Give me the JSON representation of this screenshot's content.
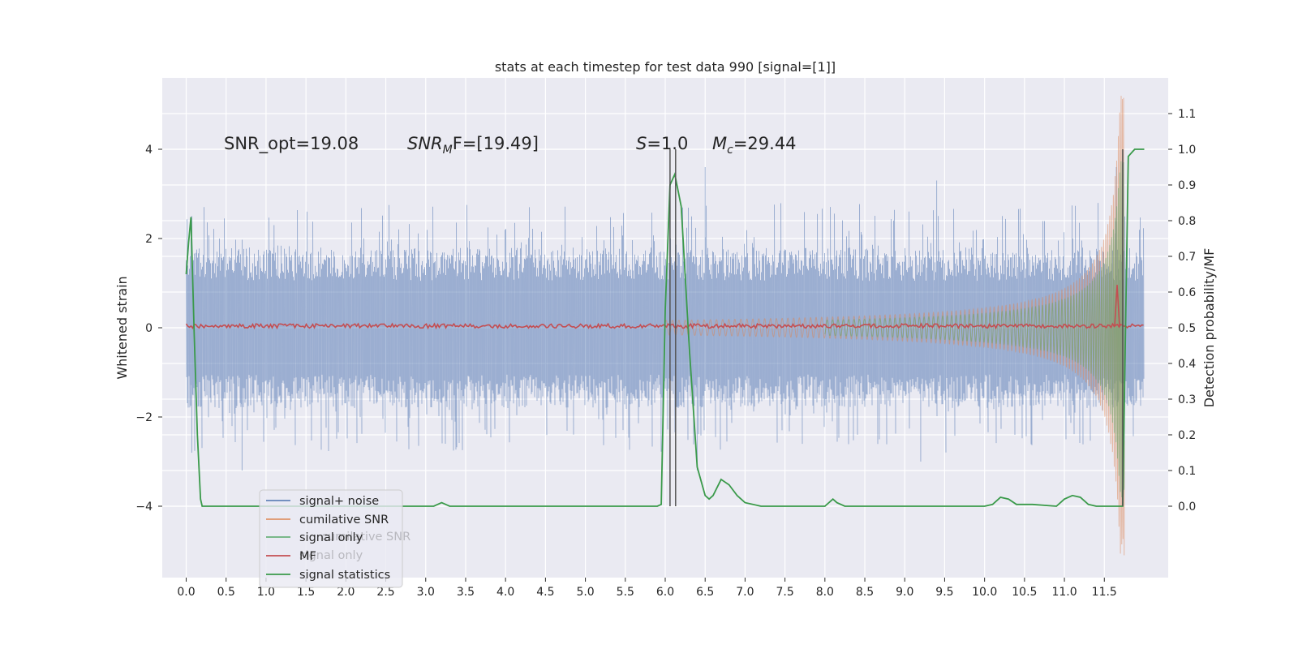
{
  "colors": {
    "background": "#ffffff",
    "plot_bg": "#eaeaf2",
    "grid": "#ffffff",
    "signal_noise": "#4c72b0",
    "cumulative_snr": "#dd8452",
    "signal_only": "#55a868",
    "mf": "#c44e52",
    "signal_statistics": "#3a9a4a",
    "vline": "#555555"
  },
  "chart_data": {
    "type": "line",
    "title": "stats at each timestep for test data 990 [signal=[1]]",
    "xlabel": "",
    "ylabel": "Whitened strain",
    "ylabel_right": "Detection probability/MF",
    "xlim": [
      -0.3,
      12.3
    ],
    "ylim": [
      -5.6,
      5.6
    ],
    "ylim_right": [
      -0.2,
      1.2
    ],
    "x_ticks": [
      0,
      0.5,
      1,
      1.5,
      2,
      2.5,
      3,
      3.5,
      4,
      4.5,
      5,
      5.5,
      6,
      6.5,
      7,
      7.5,
      8,
      8.5,
      9,
      9.5,
      10,
      10.5,
      11,
      11.5
    ],
    "x_tick_labels": [
      "0.0",
      "0.5",
      "1.0",
      "1.5",
      "2.0",
      "2.5",
      "3.0",
      "3.5",
      "4.0",
      "4.5",
      "5.0",
      "5.5",
      "6.0",
      "6.5",
      "7.0",
      "7.5",
      "8.0",
      "8.5",
      "9.0",
      "9.5",
      "10.0",
      "10.5",
      "11.0",
      "11.5"
    ],
    "y_ticks": [
      -4,
      -2,
      0,
      2,
      4
    ],
    "y_tick_labels": [
      "−4",
      "−2",
      "0",
      "2",
      "4"
    ],
    "y_right_ticks": [
      0,
      0.1,
      0.2,
      0.3,
      0.4,
      0.5,
      0.6,
      0.7,
      0.8,
      0.9,
      1.0,
      1.1
    ],
    "y_right_tick_labels": [
      "0.0",
      "0.1",
      "0.2",
      "0.3",
      "0.4",
      "0.5",
      "0.6",
      "0.7",
      "0.8",
      "0.9",
      "1.0",
      "1.1"
    ],
    "grid": true,
    "legend_position": "lower-left",
    "annotations": {
      "snr_opt": "SNR_opt=19.08",
      "snr_mf_pre": "SNR",
      "snr_mf_sub": "M",
      "snr_mf_post": "F=[19.49]",
      "s_pre": "S",
      "s_post": "=1.0",
      "mc_pre": "M",
      "mc_sub": "c",
      "mc_post": "=29.44"
    },
    "legend": [
      {
        "label": "signal+ noise",
        "series": "signal_noise"
      },
      {
        "label": "cumilative SNR",
        "series": "cumulative_snr"
      },
      {
        "label": "signal only",
        "series": "signal_only"
      },
      {
        "label": "MF",
        "series": "mf"
      },
      {
        "label": "signal statistics",
        "series": "signal_statistics"
      }
    ],
    "legend_ghosts": [
      "cumilative SNR",
      "signal only"
    ],
    "vertical_lines_x": [
      6.06,
      6.13,
      11.73
    ],
    "signal_noise": {
      "description": "dense whitened strain, amplitude about ±1.5 with spikes to about ±3",
      "x_range": [
        0,
        12
      ],
      "typical_amplitude": 1.5,
      "peak_max": 3.6,
      "peak_min": -3.2
    },
    "cumulative_snr": {
      "description": "chirp envelope growing toward merger",
      "x_range": [
        0,
        11.75
      ],
      "envelope_peak": 5.2,
      "envelope_trough": -5.1,
      "peak_x": 11.66
    },
    "signal_only": {
      "description": "chirp template envelope",
      "x_range": [
        0,
        11.75
      ],
      "envelope_peak": 3.8,
      "peak_x": 11.66
    },
    "mf": {
      "description": "matched filter output near 0.5 on right axis with spike at merger",
      "baseline_right": 0.505,
      "spike_x": 11.66,
      "spike_right": 0.62
    },
    "signal_statistics": {
      "x": [
        0.0,
        0.03,
        0.06,
        0.1,
        0.14,
        0.18,
        0.2,
        0.25,
        0.5,
        1.0,
        2.0,
        3.0,
        3.1,
        3.2,
        3.3,
        3.4,
        3.5,
        4.0,
        5.0,
        5.9,
        5.95,
        6.0,
        6.06,
        6.12,
        6.2,
        6.3,
        6.4,
        6.5,
        6.55,
        6.6,
        6.7,
        6.8,
        6.9,
        7.0,
        7.2,
        7.5,
        8.0,
        8.1,
        8.15,
        8.25,
        8.4,
        8.8,
        9.5,
        10.0,
        10.1,
        10.2,
        10.3,
        10.4,
        10.6,
        10.9,
        11.0,
        11.1,
        11.2,
        11.3,
        11.4,
        11.73,
        11.8,
        11.88,
        11.95,
        12.0
      ],
      "y": [
        0.65,
        0.74,
        0.81,
        0.48,
        0.2,
        0.02,
        0.0,
        0.0,
        0.0,
        0.0,
        0.0,
        0.0,
        0.0,
        0.01,
        0.0,
        0.0,
        0.0,
        0.0,
        0.0,
        0.0,
        0.005,
        0.55,
        0.9,
        0.93,
        0.84,
        0.45,
        0.11,
        0.03,
        0.02,
        0.03,
        0.075,
        0.06,
        0.03,
        0.01,
        0.0,
        0.0,
        0.0,
        0.02,
        0.01,
        0.0,
        0.0,
        0.0,
        0.0,
        0.0,
        0.005,
        0.025,
        0.02,
        0.005,
        0.005,
        0.0,
        0.02,
        0.03,
        0.025,
        0.005,
        0.0,
        0.0,
        0.98,
        1.0,
        1.0,
        1.0
      ]
    }
  }
}
